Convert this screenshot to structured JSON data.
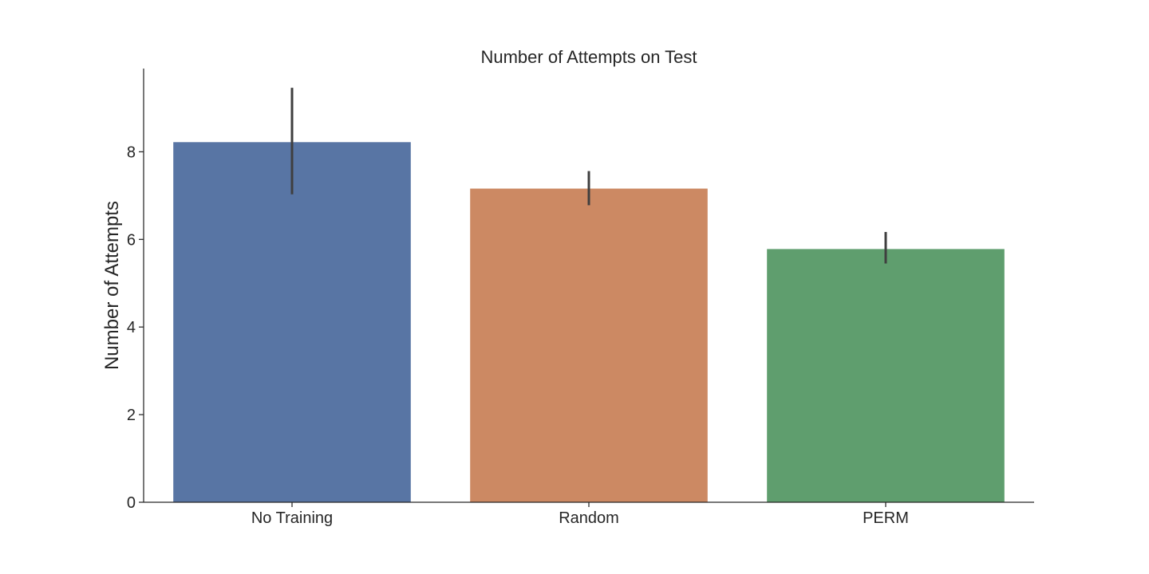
{
  "chart_data": {
    "type": "bar",
    "title": "Number of Attempts on Test",
    "xlabel": "",
    "ylabel": "Number of Attempts",
    "categories": [
      "No Training",
      "Random",
      "PERM"
    ],
    "values": [
      8.22,
      7.16,
      5.78
    ],
    "error_low": [
      7.03,
      6.78,
      5.45
    ],
    "error_high": [
      9.46,
      7.56,
      6.17
    ],
    "colors": [
      "#5875a4",
      "#cc8963",
      "#5f9e6e"
    ],
    "ylim": [
      0,
      9.9
    ],
    "yticks": [
      0,
      2,
      4,
      6,
      8
    ],
    "grid": false,
    "legend": "none"
  }
}
